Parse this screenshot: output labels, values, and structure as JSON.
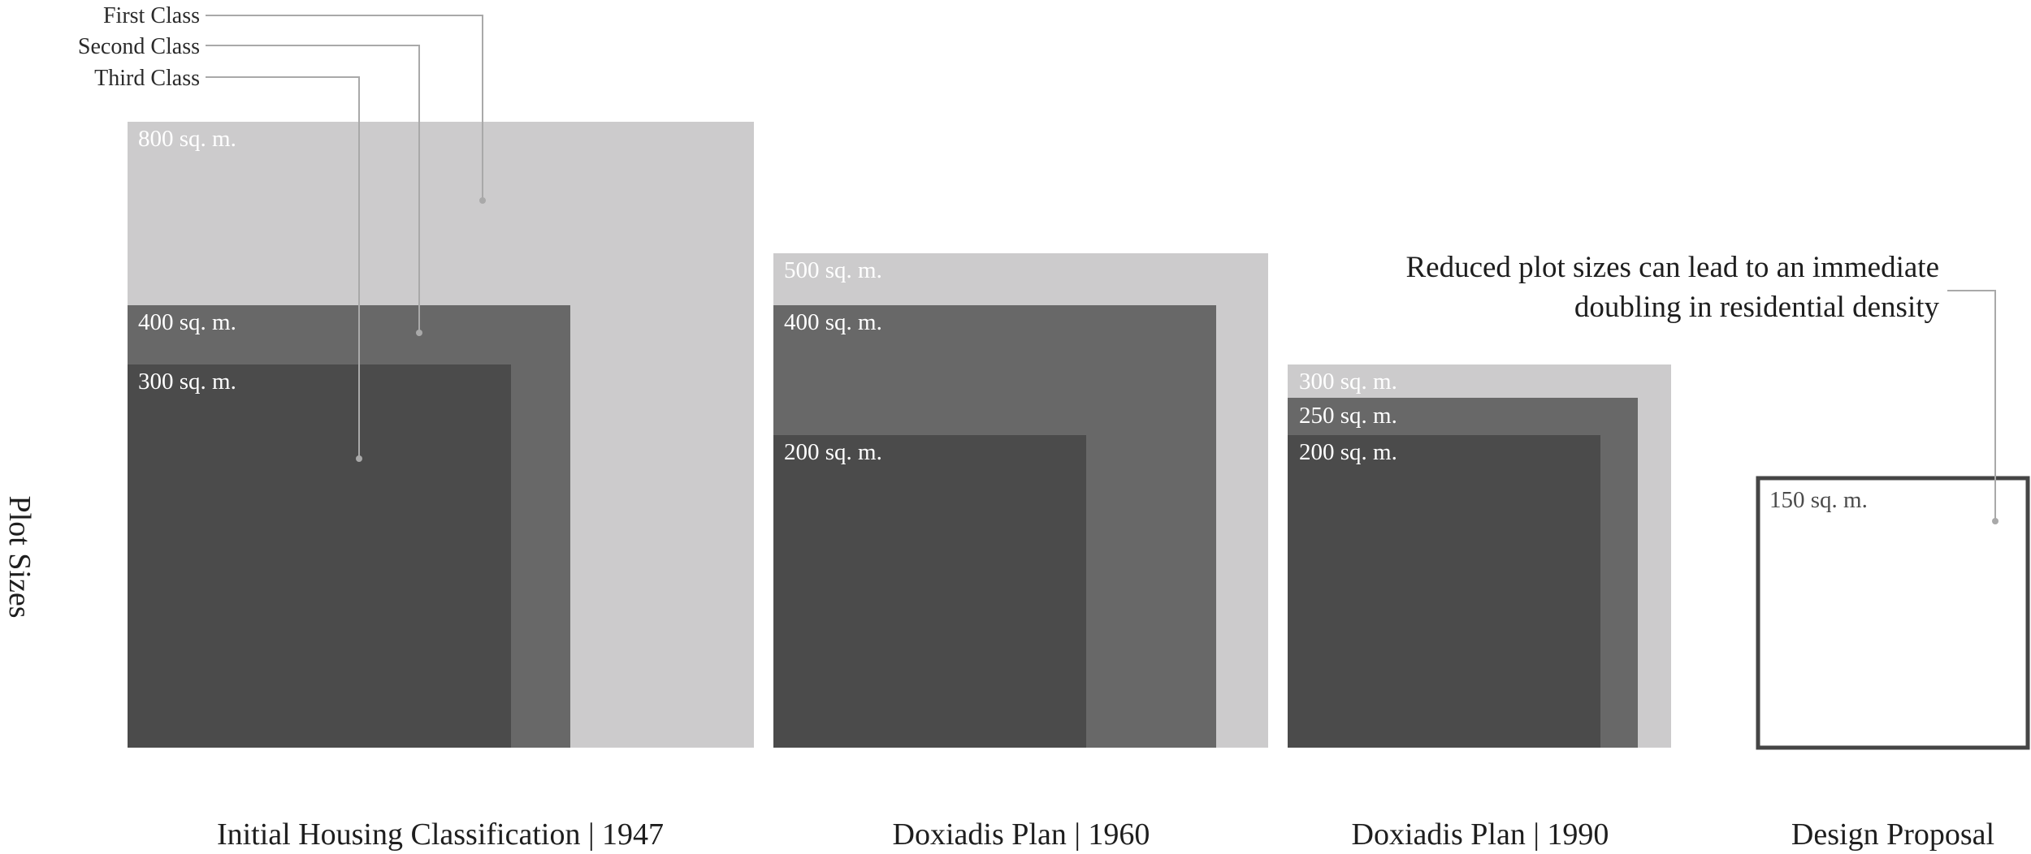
{
  "legend": {
    "first": "First Class",
    "second": "Second Class",
    "third": "Third Class"
  },
  "axis": {
    "y_label": "Plot Sizes"
  },
  "annotation": {
    "line1": "Reduced plot sizes can lead to an immediate",
    "line2": "doubling in residential density"
  },
  "colors": {
    "first_class": "#cccbcc",
    "second_class": "#686868",
    "third_class": "#4b4b4b",
    "proposal_outline": "#454545",
    "leader_lines": "#a9a9a9"
  },
  "groups": [
    {
      "title": "Initial Housing Classification | 1947",
      "plots": [
        {
          "class": "First Class",
          "area": 800,
          "label": "800 sq. m."
        },
        {
          "class": "Second Class",
          "area": 400,
          "label": "400 sq. m."
        },
        {
          "class": "Third Class",
          "area": 300,
          "label": "300 sq. m."
        }
      ]
    },
    {
      "title": "Doxiadis Plan | 1960",
      "plots": [
        {
          "class": "First Class",
          "area": 500,
          "label": "500 sq. m."
        },
        {
          "class": "Second Class",
          "area": 400,
          "label": "400 sq. m."
        },
        {
          "class": "Third Class",
          "area": 200,
          "label": "200 sq. m."
        }
      ]
    },
    {
      "title": "Doxiadis Plan | 1990",
      "plots": [
        {
          "class": "First Class",
          "area": 300,
          "label": "300 sq. m."
        },
        {
          "class": "Second Class",
          "area": 250,
          "label": "250 sq. m."
        },
        {
          "class": "Third Class",
          "area": 200,
          "label": "200 sq. m."
        }
      ]
    },
    {
      "title": "Design Proposal",
      "plots": [
        {
          "class": "Proposal",
          "area": 150,
          "label": "150 sq. m."
        }
      ]
    }
  ]
}
